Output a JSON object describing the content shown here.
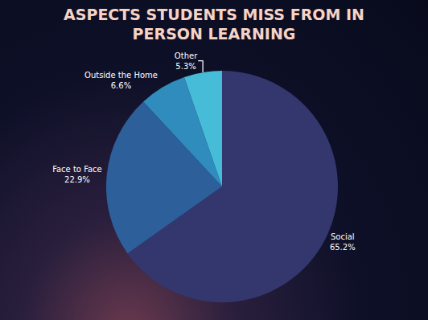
{
  "chart_data": {
    "type": "pie",
    "title": "ASPECTS STUDENTS MISS FROM IN PERSON LEARNING",
    "categories": [
      "Social",
      "Face to Face",
      "Outside the Home",
      "Other"
    ],
    "values": [
      65.2,
      22.9,
      6.6,
      5.3
    ],
    "value_labels": [
      "65.2%",
      "22.9%",
      "6.6%",
      "5.3%"
    ],
    "colors": [
      "#34376e",
      "#2d5f9b",
      "#2f8cbd",
      "#46bcd8"
    ],
    "data_labels": true
  }
}
